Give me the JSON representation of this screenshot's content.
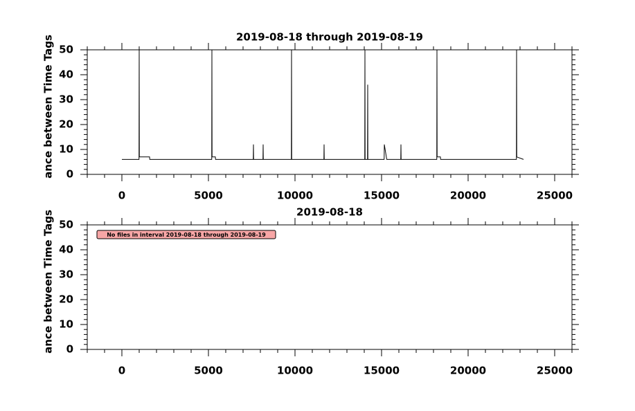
{
  "chart_data": [
    {
      "type": "line",
      "title": "2019-08-18 through 2019-08-19",
      "ylabel": "ance between Time Tags",
      "xlim": [
        -2000,
        26000
      ],
      "ylim": [
        0,
        50
      ],
      "xticks": [
        0,
        5000,
        10000,
        15000,
        20000,
        25000
      ],
      "yticks": [
        0,
        10,
        20,
        30,
        40,
        50
      ],
      "xminorticks": [
        -2000,
        -1000,
        1000,
        2000,
        3000,
        4000,
        6000,
        7000,
        8000,
        9000,
        11000,
        12000,
        13000,
        14000,
        16000,
        17000,
        18000,
        19000,
        21000,
        22000,
        23000,
        24000,
        26000
      ],
      "yminorticks": [
        2,
        4,
        6,
        8,
        12,
        14,
        16,
        18,
        22,
        24,
        26,
        28,
        32,
        34,
        36,
        38,
        42,
        44,
        46,
        48
      ],
      "series": [
        {
          "color": "#000000",
          "x": [
            0,
            990,
            1000,
            1010,
            1600,
            1610,
            5190,
            5200,
            5210,
            5400,
            5410,
            7590,
            7600,
            7610,
            8150,
            8160,
            8170,
            9790,
            9800,
            9810,
            11670,
            11680,
            11690,
            14030,
            14040,
            14050,
            14190,
            14200,
            14210,
            15150,
            15160,
            15300,
            16110,
            16120,
            16130,
            18190,
            18200,
            18210,
            18400,
            18410,
            22790,
            22800,
            22810,
            23200
          ],
          "values": [
            6,
            6,
            50,
            7,
            7,
            6,
            6,
            50,
            7,
            7,
            6,
            6,
            12,
            6,
            6,
            12,
            6,
            6,
            50,
            6,
            6,
            12,
            6,
            6,
            50,
            6,
            6,
            36,
            6,
            6,
            12,
            6,
            6,
            12,
            6,
            6,
            50,
            7,
            7,
            6,
            6,
            50,
            7,
            6
          ]
        }
      ]
    },
    {
      "type": "line",
      "title": "2019-08-18",
      "ylabel": "ance between Time Tags",
      "annotation": "No files in interval 2019-08-18 through 2019-08-19",
      "xlim": [
        -2000,
        26000
      ],
      "ylim": [
        0,
        50
      ],
      "xticks": [
        0,
        5000,
        10000,
        15000,
        20000,
        25000
      ],
      "yticks": [
        0,
        10,
        20,
        30,
        40,
        50
      ],
      "xminorticks": [
        -2000,
        -1000,
        1000,
        2000,
        3000,
        4000,
        6000,
        7000,
        8000,
        9000,
        11000,
        12000,
        13000,
        14000,
        16000,
        17000,
        18000,
        19000,
        21000,
        22000,
        23000,
        24000,
        26000
      ],
      "yminorticks": [
        2,
        4,
        6,
        8,
        12,
        14,
        16,
        18,
        22,
        24,
        26,
        28,
        32,
        34,
        36,
        38,
        42,
        44,
        46,
        48
      ],
      "series": []
    }
  ]
}
